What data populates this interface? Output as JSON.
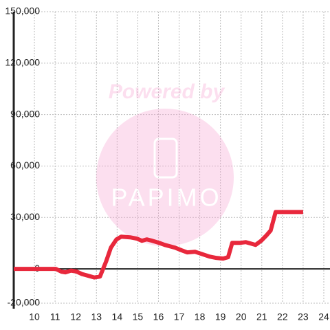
{
  "chart_data": {
    "type": "line",
    "watermark": [
      "Powered by",
      "PAPIMO"
    ],
    "xlim": [
      9,
      24.3
    ],
    "xticks": [
      10,
      11,
      12,
      13,
      14,
      15,
      16,
      17,
      18,
      19,
      20,
      21,
      22,
      23,
      24
    ],
    "ylim": [
      -20000,
      150000
    ],
    "yticks": [
      {
        "value": -20000,
        "label": "-20,000"
      },
      0,
      {
        "value": 30000,
        "label": "30,000"
      },
      {
        "value": 60000,
        "label": "60,000"
      },
      {
        "value": 90000,
        "label": "90,000"
      },
      {
        "value": 120000,
        "label": "120,000"
      },
      {
        "value": 150000,
        "label": "150,000"
      }
    ],
    "grid": true,
    "series": [
      {
        "color": "#e8283c",
        "x": [
          9,
          10.9,
          11.03,
          11.3,
          11.5,
          11.77,
          12.03,
          12.3,
          12.9,
          13.17,
          13.47,
          13.7,
          13.97,
          14.2,
          14.63,
          14.97,
          15.2,
          15.43,
          15.7,
          16.03,
          16.3,
          16.8,
          17.13,
          17.4,
          17.77,
          18.17,
          18.47,
          18.8,
          19.13,
          19.37,
          19.57,
          19.97,
          20.23,
          20.47,
          20.7,
          20.97,
          21.23,
          21.43,
          21.67,
          21.97,
          23
        ],
        "values": [
          0,
          0,
          0,
          -1600,
          -2000,
          -1000,
          -1500,
          -3000,
          -5000,
          -4500,
          4400,
          12400,
          17200,
          18800,
          18400,
          17600,
          16400,
          17200,
          16400,
          15200,
          14000,
          12400,
          10800,
          9600,
          10000,
          8400,
          7200,
          6400,
          6000,
          6800,
          15200,
          15200,
          15600,
          14800,
          14000,
          16400,
          19600,
          22400,
          33200,
          33200,
          33200
        ]
      }
    ]
  }
}
